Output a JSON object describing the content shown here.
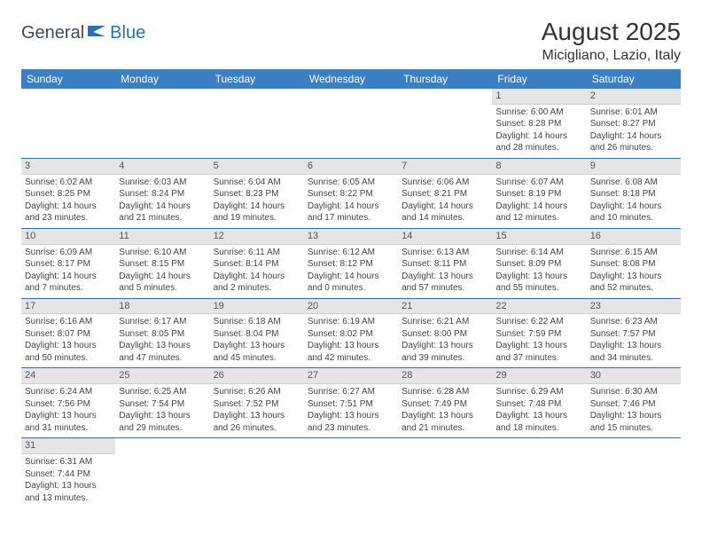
{
  "logo": {
    "partA": "General",
    "partB": "Blue"
  },
  "title": "August 2025",
  "location": "Micigliano, Lazio, Italy",
  "colors": {
    "header_bg": "#3a7fc4",
    "header_text": "#ffffff",
    "daynum_bg": "#e5e5e5",
    "row_divider": "#2a6fb5",
    "logo_general": "#3f4a56",
    "logo_blue": "#2a6fb5",
    "text": "#444444",
    "background": "#ffffff"
  },
  "typography": {
    "title_fontsize": 28,
    "location_fontsize": 16,
    "header_fontsize": 12,
    "daynum_fontsize": 11,
    "cell_fontsize": 10
  },
  "dayHeaders": [
    "Sunday",
    "Monday",
    "Tuesday",
    "Wednesday",
    "Thursday",
    "Friday",
    "Saturday"
  ],
  "weeks": [
    [
      null,
      null,
      null,
      null,
      null,
      {
        "n": "1",
        "sunrise": "Sunrise: 6:00 AM",
        "sunset": "Sunset: 8:28 PM",
        "day1": "Daylight: 14 hours",
        "day2": "and 28 minutes."
      },
      {
        "n": "2",
        "sunrise": "Sunrise: 6:01 AM",
        "sunset": "Sunset: 8:27 PM",
        "day1": "Daylight: 14 hours",
        "day2": "and 26 minutes."
      }
    ],
    [
      {
        "n": "3",
        "sunrise": "Sunrise: 6:02 AM",
        "sunset": "Sunset: 8:25 PM",
        "day1": "Daylight: 14 hours",
        "day2": "and 23 minutes."
      },
      {
        "n": "4",
        "sunrise": "Sunrise: 6:03 AM",
        "sunset": "Sunset: 8:24 PM",
        "day1": "Daylight: 14 hours",
        "day2": "and 21 minutes."
      },
      {
        "n": "5",
        "sunrise": "Sunrise: 6:04 AM",
        "sunset": "Sunset: 8:23 PM",
        "day1": "Daylight: 14 hours",
        "day2": "and 19 minutes."
      },
      {
        "n": "6",
        "sunrise": "Sunrise: 6:05 AM",
        "sunset": "Sunset: 8:22 PM",
        "day1": "Daylight: 14 hours",
        "day2": "and 17 minutes."
      },
      {
        "n": "7",
        "sunrise": "Sunrise: 6:06 AM",
        "sunset": "Sunset: 8:21 PM",
        "day1": "Daylight: 14 hours",
        "day2": "and 14 minutes."
      },
      {
        "n": "8",
        "sunrise": "Sunrise: 6:07 AM",
        "sunset": "Sunset: 8:19 PM",
        "day1": "Daylight: 14 hours",
        "day2": "and 12 minutes."
      },
      {
        "n": "9",
        "sunrise": "Sunrise: 6:08 AM",
        "sunset": "Sunset: 8:18 PM",
        "day1": "Daylight: 14 hours",
        "day2": "and 10 minutes."
      }
    ],
    [
      {
        "n": "10",
        "sunrise": "Sunrise: 6:09 AM",
        "sunset": "Sunset: 8:17 PM",
        "day1": "Daylight: 14 hours",
        "day2": "and 7 minutes."
      },
      {
        "n": "11",
        "sunrise": "Sunrise: 6:10 AM",
        "sunset": "Sunset: 8:15 PM",
        "day1": "Daylight: 14 hours",
        "day2": "and 5 minutes."
      },
      {
        "n": "12",
        "sunrise": "Sunrise: 6:11 AM",
        "sunset": "Sunset: 8:14 PM",
        "day1": "Daylight: 14 hours",
        "day2": "and 2 minutes."
      },
      {
        "n": "13",
        "sunrise": "Sunrise: 6:12 AM",
        "sunset": "Sunset: 8:12 PM",
        "day1": "Daylight: 14 hours",
        "day2": "and 0 minutes."
      },
      {
        "n": "14",
        "sunrise": "Sunrise: 6:13 AM",
        "sunset": "Sunset: 8:11 PM",
        "day1": "Daylight: 13 hours",
        "day2": "and 57 minutes."
      },
      {
        "n": "15",
        "sunrise": "Sunrise: 6:14 AM",
        "sunset": "Sunset: 8:09 PM",
        "day1": "Daylight: 13 hours",
        "day2": "and 55 minutes."
      },
      {
        "n": "16",
        "sunrise": "Sunrise: 6:15 AM",
        "sunset": "Sunset: 8:08 PM",
        "day1": "Daylight: 13 hours",
        "day2": "and 52 minutes."
      }
    ],
    [
      {
        "n": "17",
        "sunrise": "Sunrise: 6:16 AM",
        "sunset": "Sunset: 8:07 PM",
        "day1": "Daylight: 13 hours",
        "day2": "and 50 minutes."
      },
      {
        "n": "18",
        "sunrise": "Sunrise: 6:17 AM",
        "sunset": "Sunset: 8:05 PM",
        "day1": "Daylight: 13 hours",
        "day2": "and 47 minutes."
      },
      {
        "n": "19",
        "sunrise": "Sunrise: 6:18 AM",
        "sunset": "Sunset: 8:04 PM",
        "day1": "Daylight: 13 hours",
        "day2": "and 45 minutes."
      },
      {
        "n": "20",
        "sunrise": "Sunrise: 6:19 AM",
        "sunset": "Sunset: 8:02 PM",
        "day1": "Daylight: 13 hours",
        "day2": "and 42 minutes."
      },
      {
        "n": "21",
        "sunrise": "Sunrise: 6:21 AM",
        "sunset": "Sunset: 8:00 PM",
        "day1": "Daylight: 13 hours",
        "day2": "and 39 minutes."
      },
      {
        "n": "22",
        "sunrise": "Sunrise: 6:22 AM",
        "sunset": "Sunset: 7:59 PM",
        "day1": "Daylight: 13 hours",
        "day2": "and 37 minutes."
      },
      {
        "n": "23",
        "sunrise": "Sunrise: 6:23 AM",
        "sunset": "Sunset: 7:57 PM",
        "day1": "Daylight: 13 hours",
        "day2": "and 34 minutes."
      }
    ],
    [
      {
        "n": "24",
        "sunrise": "Sunrise: 6:24 AM",
        "sunset": "Sunset: 7:56 PM",
        "day1": "Daylight: 13 hours",
        "day2": "and 31 minutes."
      },
      {
        "n": "25",
        "sunrise": "Sunrise: 6:25 AM",
        "sunset": "Sunset: 7:54 PM",
        "day1": "Daylight: 13 hours",
        "day2": "and 29 minutes."
      },
      {
        "n": "26",
        "sunrise": "Sunrise: 6:26 AM",
        "sunset": "Sunset: 7:52 PM",
        "day1": "Daylight: 13 hours",
        "day2": "and 26 minutes."
      },
      {
        "n": "27",
        "sunrise": "Sunrise: 6:27 AM",
        "sunset": "Sunset: 7:51 PM",
        "day1": "Daylight: 13 hours",
        "day2": "and 23 minutes."
      },
      {
        "n": "28",
        "sunrise": "Sunrise: 6:28 AM",
        "sunset": "Sunset: 7:49 PM",
        "day1": "Daylight: 13 hours",
        "day2": "and 21 minutes."
      },
      {
        "n": "29",
        "sunrise": "Sunrise: 6:29 AM",
        "sunset": "Sunset: 7:48 PM",
        "day1": "Daylight: 13 hours",
        "day2": "and 18 minutes."
      },
      {
        "n": "30",
        "sunrise": "Sunrise: 6:30 AM",
        "sunset": "Sunset: 7:46 PM",
        "day1": "Daylight: 13 hours",
        "day2": "and 15 minutes."
      }
    ],
    [
      {
        "n": "31",
        "sunrise": "Sunrise: 6:31 AM",
        "sunset": "Sunset: 7:44 PM",
        "day1": "Daylight: 13 hours",
        "day2": "and 13 minutes."
      },
      null,
      null,
      null,
      null,
      null,
      null
    ]
  ]
}
